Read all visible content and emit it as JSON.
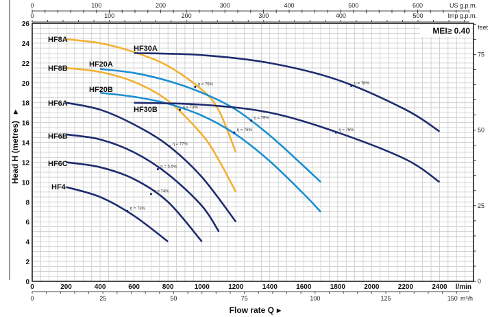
{
  "chart_data": {
    "type": "line",
    "title": "",
    "badge": "MEI≥ 0.40",
    "xlabel": "Flow rate Q",
    "xlabel_arrow": "▸",
    "ylabel": "Head H (metres)",
    "ylabel_arrow": "▸",
    "xlim": [
      0,
      2600
    ],
    "ylim": [
      0,
      26
    ],
    "grid": true,
    "x_unit": "l/min",
    "x_ticks": [
      0,
      200,
      400,
      600,
      800,
      1000,
      1200,
      1400,
      1600,
      1800,
      2000,
      2200,
      2400
    ],
    "y_ticks": [
      0,
      2,
      4,
      6,
      8,
      10,
      12,
      14,
      16,
      18,
      20,
      22,
      24,
      26
    ],
    "secondary_axes": {
      "top_us": {
        "unit": "US g.p.m.",
        "ticks": [
          0,
          100,
          200,
          300,
          400,
          500,
          600
        ]
      },
      "top_imp": {
        "unit": "Imp g.p.m.",
        "ticks": [
          0,
          100,
          200,
          300,
          400,
          500
        ]
      },
      "bottom_m3h": {
        "unit": "m³/h",
        "ticks": [
          0,
          25,
          50,
          75,
          100,
          125,
          150
        ]
      },
      "right_feet": {
        "unit": "feet",
        "ticks": [
          0,
          25,
          50,
          75
        ]
      }
    },
    "series": [
      {
        "name": "HF8A",
        "color": "#f2b133",
        "x": [
          200,
          400,
          600,
          800,
          1000,
          1100,
          1200
        ],
        "y": [
          24.4,
          24.0,
          23.1,
          21.7,
          19.3,
          17.2,
          13.0
        ]
      },
      {
        "name": "HF8B",
        "color": "#f2b133",
        "x": [
          200,
          400,
          600,
          800,
          1000,
          1100,
          1200
        ],
        "y": [
          21.5,
          21.1,
          20.1,
          18.2,
          14.8,
          12.2,
          9.0
        ]
      },
      {
        "name": "HF20A",
        "color": "#1b8fd2",
        "x": [
          400,
          600,
          800,
          1000,
          1200,
          1400,
          1600,
          1700
        ],
        "y": [
          21.4,
          21.0,
          20.2,
          19.0,
          17.3,
          14.7,
          11.6,
          10.0
        ]
      },
      {
        "name": "HF20B",
        "color": "#1b8fd2",
        "x": [
          400,
          600,
          800,
          1000,
          1200,
          1400,
          1600,
          1700
        ],
        "y": [
          19.0,
          18.6,
          17.9,
          16.7,
          14.8,
          12.1,
          8.8,
          7.0
        ]
      },
      {
        "name": "HF30A",
        "color": "#1f2c6e",
        "x": [
          600,
          1000,
          1400,
          1800,
          2200,
          2400
        ],
        "y": [
          23.0,
          22.8,
          22.0,
          20.3,
          17.3,
          15.1
        ]
      },
      {
        "name": "HF30B",
        "color": "#1f2c6e",
        "x": [
          600,
          1000,
          1400,
          1800,
          2200,
          2400
        ],
        "y": [
          18.0,
          17.8,
          17.0,
          15.0,
          12.3,
          10.0
        ]
      },
      {
        "name": "HF6A",
        "color": "#1f2c6e",
        "x": [
          200,
          400,
          600,
          800,
          1000,
          1200
        ],
        "y": [
          18.0,
          17.3,
          15.8,
          13.7,
          10.5,
          6.0
        ]
      },
      {
        "name": "HF6B",
        "color": "#1f2c6e",
        "x": [
          200,
          400,
          600,
          800,
          1000,
          1100
        ],
        "y": [
          14.8,
          14.3,
          13.0,
          10.8,
          7.6,
          5.0
        ]
      },
      {
        "name": "HF6C",
        "color": "#1f2c6e",
        "x": [
          200,
          400,
          600,
          800,
          1000
        ],
        "y": [
          12.0,
          11.5,
          10.3,
          8.0,
          4.0
        ]
      },
      {
        "name": "HF4",
        "color": "#1f2c6e",
        "x": [
          200,
          400,
          600,
          800
        ],
        "y": [
          9.5,
          8.5,
          6.6,
          4.0
        ]
      }
    ],
    "annotations": [
      {
        "text": "η = 75%",
        "x": 960,
        "y": 19.6
      },
      {
        "text": "η = 73%",
        "x": 870,
        "y": 17.3
      },
      {
        "text": "η = 79%",
        "x": 1290,
        "y": 16.2
      },
      {
        "text": "η = 76%",
        "x": 1190,
        "y": 15.0
      },
      {
        "text": "η = 78%",
        "x": 1880,
        "y": 19.7
      },
      {
        "text": "η = 76%",
        "x": 1790,
        "y": 15.0
      },
      {
        "text": "η = 77%",
        "x": 810,
        "y": 13.6
      },
      {
        "text": "η = 5.5%",
        "x": 740,
        "y": 11.3
      },
      {
        "text": "η = 74%",
        "x": 700,
        "y": 8.8
      },
      {
        "text": "η = 73%",
        "x": 560,
        "y": 7.1
      }
    ]
  }
}
